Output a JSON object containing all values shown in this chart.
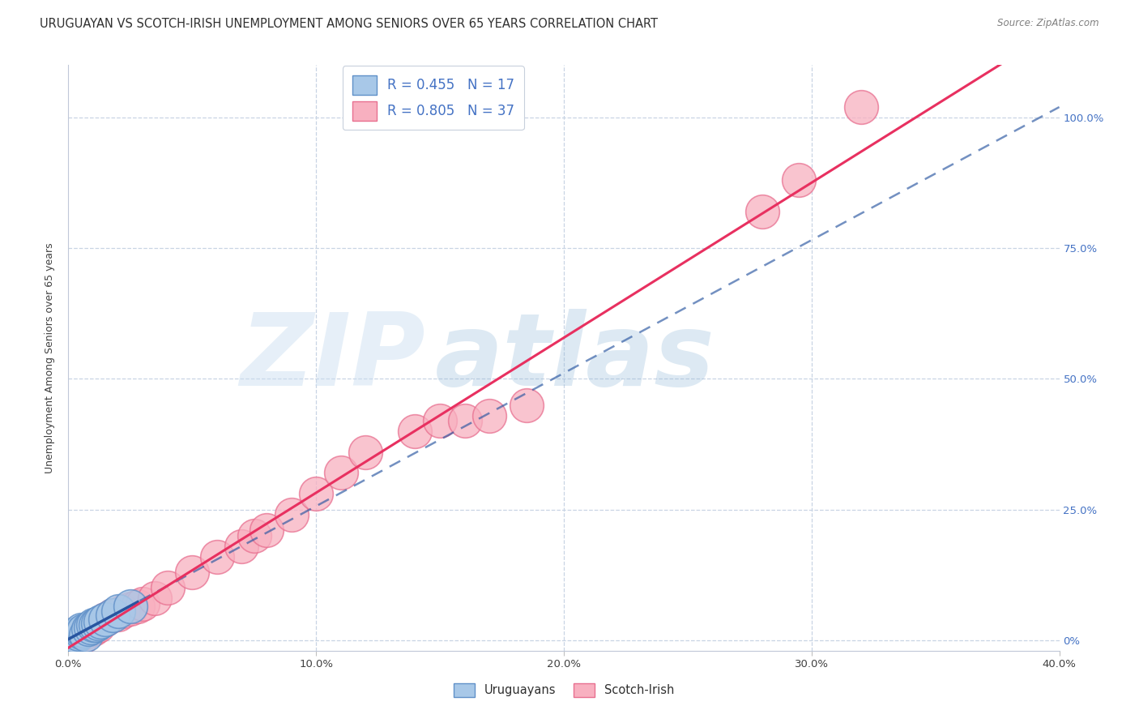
{
  "title": "URUGUAYAN VS SCOTCH-IRISH UNEMPLOYMENT AMONG SENIORS OVER 65 YEARS CORRELATION CHART",
  "source": "Source: ZipAtlas.com",
  "ylabel": "Unemployment Among Seniors over 65 years",
  "xlim": [
    0.0,
    0.4
  ],
  "ylim": [
    -0.02,
    1.1
  ],
  "xtick_labels": [
    "0.0%",
    "10.0%",
    "20.0%",
    "30.0%",
    "40.0%"
  ],
  "xtick_vals": [
    0.0,
    0.1,
    0.2,
    0.3,
    0.4
  ],
  "ytick_labels_right": [
    "0%",
    "25.0%",
    "50.0%",
    "75.0%",
    "100.0%"
  ],
  "ytick_vals": [
    0.0,
    0.25,
    0.5,
    0.75,
    1.0
  ],
  "uruguayan_R": 0.455,
  "uruguayan_N": 17,
  "scotch_irish_R": 0.805,
  "scotch_irish_N": 37,
  "uruguayan_color": "#a8c8e8",
  "scotch_irish_color": "#f8b0c0",
  "uruguayan_edge_color": "#6090c8",
  "scotch_irish_edge_color": "#e87090",
  "uruguayan_line_color": "#2855a0",
  "scotch_irish_line_color": "#e83060",
  "uruguayan_scatter": [
    [
      0.002,
      0.01
    ],
    [
      0.003,
      0.008
    ],
    [
      0.004,
      0.012
    ],
    [
      0.005,
      0.015
    ],
    [
      0.005,
      0.02
    ],
    [
      0.006,
      0.018
    ],
    [
      0.007,
      0.01
    ],
    [
      0.008,
      0.022
    ],
    [
      0.009,
      0.025
    ],
    [
      0.01,
      0.03
    ],
    [
      0.011,
      0.03
    ],
    [
      0.012,
      0.032
    ],
    [
      0.013,
      0.035
    ],
    [
      0.015,
      0.04
    ],
    [
      0.018,
      0.048
    ],
    [
      0.02,
      0.055
    ],
    [
      0.025,
      0.065
    ]
  ],
  "scotch_irish_scatter": [
    [
      0.002,
      0.008
    ],
    [
      0.003,
      0.005
    ],
    [
      0.004,
      0.01
    ],
    [
      0.005,
      0.012
    ],
    [
      0.006,
      0.015
    ],
    [
      0.007,
      0.015
    ],
    [
      0.008,
      0.018
    ],
    [
      0.009,
      0.02
    ],
    [
      0.01,
      0.022
    ],
    [
      0.012,
      0.028
    ],
    [
      0.015,
      0.04
    ],
    [
      0.018,
      0.048
    ],
    [
      0.02,
      0.05
    ],
    [
      0.022,
      0.055
    ],
    [
      0.025,
      0.06
    ],
    [
      0.028,
      0.065
    ],
    [
      0.03,
      0.07
    ],
    [
      0.035,
      0.08
    ],
    [
      0.04,
      0.1
    ],
    [
      0.05,
      0.13
    ],
    [
      0.06,
      0.16
    ],
    [
      0.07,
      0.18
    ],
    [
      0.075,
      0.2
    ],
    [
      0.08,
      0.21
    ],
    [
      0.09,
      0.24
    ],
    [
      0.1,
      0.28
    ],
    [
      0.11,
      0.32
    ],
    [
      0.12,
      0.36
    ],
    [
      0.14,
      0.4
    ],
    [
      0.15,
      0.42
    ],
    [
      0.16,
      0.42
    ],
    [
      0.17,
      0.43
    ],
    [
      0.185,
      0.45
    ],
    [
      0.28,
      0.82
    ],
    [
      0.295,
      0.88
    ],
    [
      0.32,
      1.02
    ],
    [
      0.005,
      0.005
    ]
  ],
  "watermark_zip": "ZIP",
  "watermark_atlas": "atlas",
  "background_color": "#ffffff",
  "grid_color": "#c8d4e4",
  "title_fontsize": 10.5,
  "axis_label_fontsize": 9,
  "tick_fontsize": 9.5,
  "scatter_size": 900
}
